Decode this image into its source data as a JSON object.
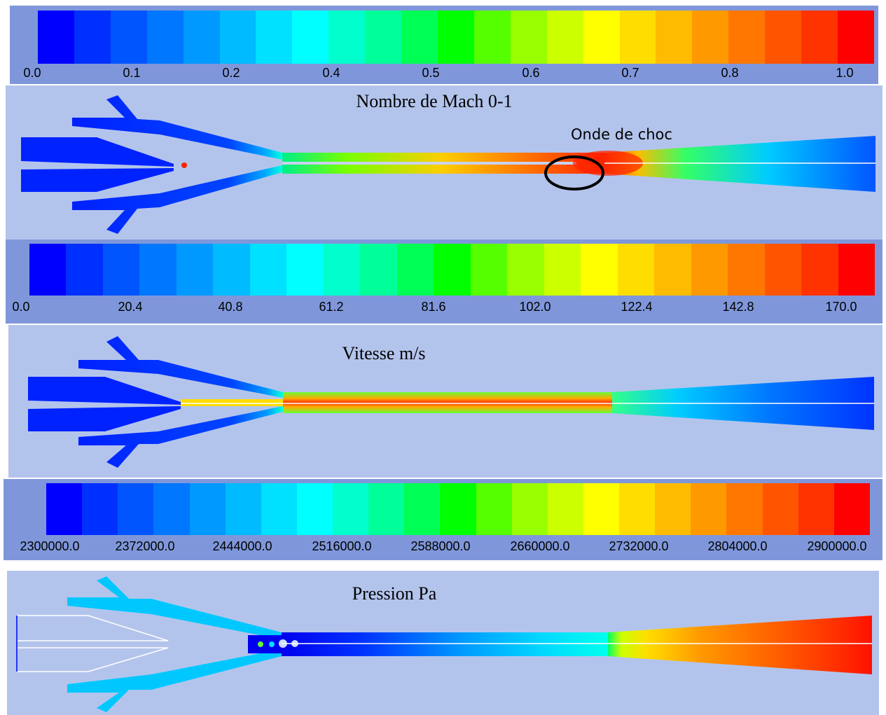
{
  "palette": [
    "#0000ff",
    "#0030ff",
    "#0055ff",
    "#0077ff",
    "#0099ff",
    "#00bbff",
    "#00e0ff",
    "#00ffff",
    "#00ffcc",
    "#00ff99",
    "#00ff55",
    "#00ff00",
    "#55ff00",
    "#99ff00",
    "#ccff00",
    "#ffff00",
    "#ffdd00",
    "#ffbb00",
    "#ff9900",
    "#ff7700",
    "#ff5500",
    "#ff3300",
    "#ff0000"
  ],
  "colorbars": [
    {
      "name": "mach",
      "ticks": [
        "0.0",
        "0.1",
        "0.2",
        "0.4",
        "0.5",
        "0.6",
        "0.7",
        "0.8",
        "1.0"
      ]
    },
    {
      "name": "velocity",
      "ticks": [
        "0.0",
        "20.4",
        "40.8",
        "61.2",
        "81.6",
        "102.0",
        "122.4",
        "142.8",
        "170.0"
      ]
    },
    {
      "name": "pressure",
      "ticks": [
        "2300000.0",
        "2372000.0",
        "2444000.0",
        "2516000.0",
        "2588000.0",
        "2660000.0",
        "2732000.0",
        "2804000.0",
        "2900000.0"
      ]
    }
  ],
  "panels": {
    "mach": {
      "title": "Nombre de Mach 0-1",
      "annotation": "Onde de choc"
    },
    "velocity": {
      "title": "Vitesse m/s"
    },
    "pressure": {
      "title": "Pression Pa"
    }
  }
}
